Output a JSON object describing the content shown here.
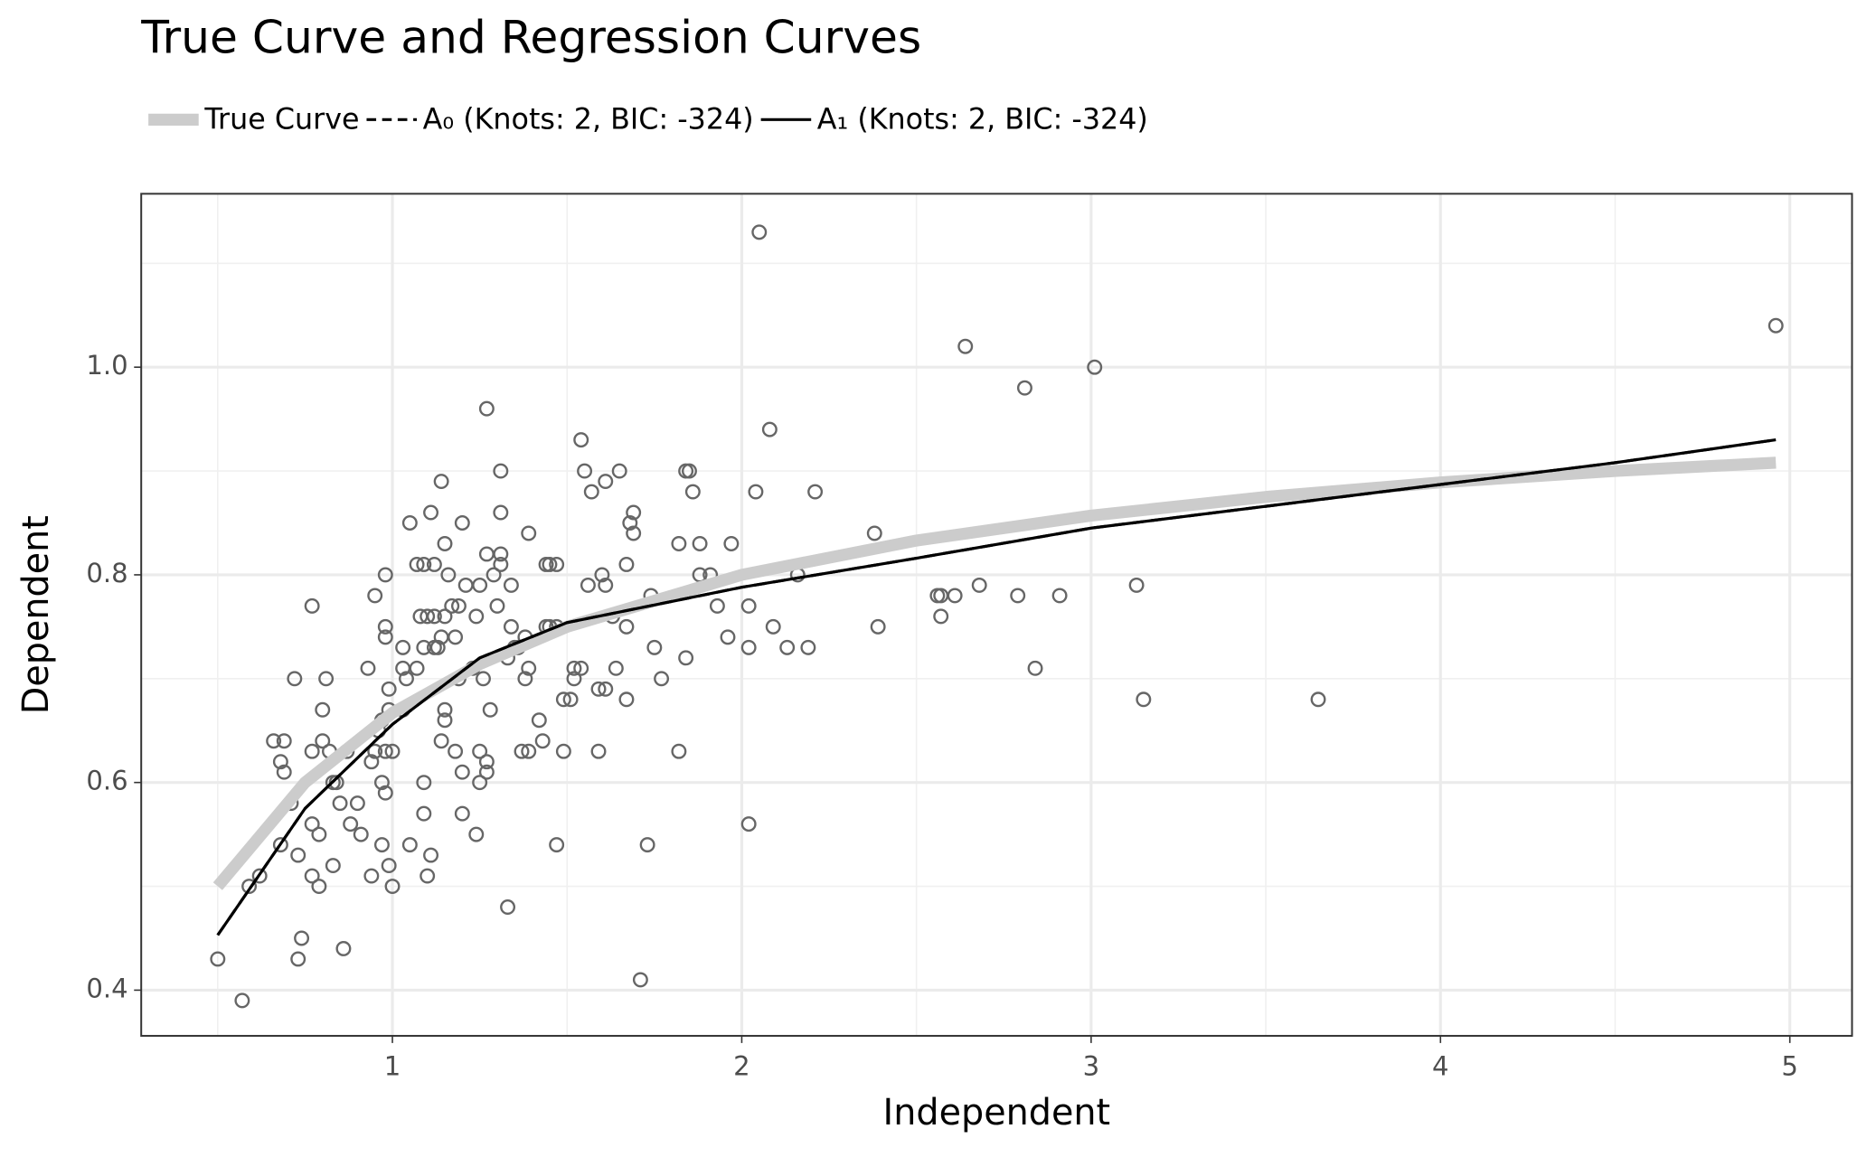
{
  "chart_data": {
    "type": "scatter",
    "title": "True Curve and Regression Curves",
    "x_label": "Independent",
    "y_label": "Dependent",
    "xlim": [
      0.281,
      5.178
    ],
    "ylim": [
      0.356,
      1.167
    ],
    "xticks": [
      1,
      2,
      3,
      4,
      5
    ],
    "yticks": [
      0.4,
      0.6,
      0.8,
      {
        "value": 1,
        "label": "1.0"
      }
    ],
    "grid": true,
    "legend": "top",
    "point_color": "#666666",
    "x": [
      0.5,
      0.57,
      0.59,
      0.62,
      0.66,
      0.68,
      0.68,
      0.69,
      0.69,
      0.71,
      0.72,
      0.73,
      0.73,
      0.74,
      0.77,
      0.77,
      0.77,
      0.77,
      0.79,
      0.79,
      0.8,
      0.8,
      0.81,
      0.82,
      0.83,
      0.83,
      0.84,
      0.85,
      0.86,
      0.87,
      0.88,
      0.9,
      0.91,
      0.93,
      0.94,
      0.94,
      0.95,
      0.95,
      0.96,
      0.97,
      0.97,
      0.97,
      0.98,
      0.98,
      0.98,
      0.98,
      0.98,
      0.99,
      0.99,
      0.99,
      1.0,
      1.0,
      1.03,
      1.03,
      1.03,
      1.04,
      1.05,
      1.05,
      1.07,
      1.07,
      1.08,
      1.09,
      1.09,
      1.09,
      1.09,
      1.1,
      1.1,
      1.11,
      1.11,
      1.12,
      1.12,
      1.12,
      1.13,
      1.14,
      1.14,
      1.14,
      1.15,
      1.15,
      1.15,
      1.15,
      1.16,
      1.17,
      1.18,
      1.18,
      1.19,
      1.19,
      1.2,
      1.2,
      1.2,
      1.21,
      1.23,
      1.24,
      1.24,
      1.25,
      1.25,
      1.25,
      1.26,
      1.27,
      1.27,
      1.27,
      1.27,
      1.28,
      1.29,
      1.3,
      1.31,
      1.31,
      1.31,
      1.31,
      1.33,
      1.33,
      1.34,
      1.34,
      1.35,
      1.36,
      1.37,
      1.38,
      1.38,
      1.39,
      1.39,
      1.39,
      1.42,
      1.43,
      1.44,
      1.44,
      1.45,
      1.45,
      1.47,
      1.47,
      1.47,
      1.49,
      1.49,
      1.51,
      1.52,
      1.52,
      1.54,
      1.54,
      1.55,
      1.56,
      1.57,
      1.59,
      1.59,
      1.6,
      1.61,
      1.61,
      1.61,
      1.63,
      1.64,
      1.65,
      1.67,
      1.67,
      1.67,
      1.68,
      1.69,
      1.69,
      1.71,
      1.73,
      1.74,
      1.75,
      1.77,
      1.82,
      1.82,
      1.84,
      1.84,
      1.85,
      1.86,
      1.88,
      1.88,
      1.91,
      1.93,
      1.96,
      1.97,
      2.02,
      2.02,
      2.02,
      2.04,
      2.05,
      2.08,
      2.09,
      2.13,
      2.16,
      2.19,
      2.21,
      2.38,
      2.39,
      2.56,
      2.57,
      2.57,
      2.61,
      2.64,
      2.68,
      2.79,
      2.81,
      2.84,
      2.91,
      3.01,
      3.13,
      3.15,
      3.65,
      4.96
    ],
    "values": [
      0.43,
      0.39,
      0.5,
      0.51,
      0.64,
      0.62,
      0.54,
      0.64,
      0.61,
      0.58,
      0.7,
      0.53,
      0.43,
      0.45,
      0.77,
      0.63,
      0.56,
      0.51,
      0.55,
      0.5,
      0.67,
      0.64,
      0.7,
      0.63,
      0.6,
      0.52,
      0.6,
      0.58,
      0.44,
      0.63,
      0.56,
      0.58,
      0.55,
      0.71,
      0.51,
      0.62,
      0.78,
      0.63,
      0.65,
      0.66,
      0.6,
      0.54,
      0.75,
      0.74,
      0.8,
      0.63,
      0.59,
      0.69,
      0.67,
      0.52,
      0.5,
      0.63,
      0.67,
      0.73,
      0.71,
      0.7,
      0.85,
      0.54,
      0.81,
      0.71,
      0.76,
      0.73,
      0.6,
      0.57,
      0.81,
      0.51,
      0.76,
      0.86,
      0.53,
      0.81,
      0.76,
      0.73,
      0.73,
      0.89,
      0.64,
      0.74,
      0.83,
      0.76,
      0.67,
      0.66,
      0.8,
      0.77,
      0.74,
      0.63,
      0.77,
      0.7,
      0.85,
      0.61,
      0.57,
      0.79,
      0.71,
      0.76,
      0.55,
      0.79,
      0.63,
      0.6,
      0.7,
      0.96,
      0.82,
      0.62,
      0.61,
      0.67,
      0.8,
      0.77,
      0.9,
      0.86,
      0.82,
      0.81,
      0.72,
      0.48,
      0.79,
      0.75,
      0.73,
      0.73,
      0.63,
      0.74,
      0.7,
      0.84,
      0.71,
      0.63,
      0.66,
      0.64,
      0.81,
      0.75,
      0.81,
      0.75,
      0.81,
      0.75,
      0.54,
      0.68,
      0.63,
      0.68,
      0.71,
      0.7,
      0.93,
      0.71,
      0.9,
      0.79,
      0.88,
      0.69,
      0.63,
      0.8,
      0.89,
      0.79,
      0.69,
      0.76,
      0.71,
      0.9,
      0.81,
      0.75,
      0.68,
      0.85,
      0.86,
      0.84,
      0.41,
      0.54,
      0.78,
      0.73,
      0.7,
      0.83,
      0.63,
      0.9,
      0.72,
      0.9,
      0.88,
      0.83,
      0.8,
      0.8,
      0.77,
      0.74,
      0.83,
      0.77,
      0.73,
      0.56,
      0.88,
      1.13,
      0.94,
      0.75,
      0.73,
      0.8,
      0.73,
      0.88,
      0.84,
      0.75,
      0.78,
      0.78,
      0.76,
      0.78,
      1.02,
      0.79,
      0.78,
      0.98,
      0.71,
      0.78,
      1.0,
      0.79,
      0.68,
      0.68,
      1.04
    ],
    "series": [
      {
        "name": "True Curve",
        "color": "#cccccc",
        "dash": "solid",
        "width": 10,
        "x": [
          0.5,
          0.75,
          1,
          1.25,
          1.5,
          2,
          2.5,
          3,
          3.5,
          4,
          4.5,
          4.96
        ],
        "values": [
          0.5,
          0.6,
          0.667,
          0.714,
          0.75,
          0.8,
          0.833,
          0.857,
          0.875,
          0.889,
          0.9,
          0.908
        ]
      },
      {
        "name": "A₀ (Knots: 2, BIC: -324)",
        "color": "#000000",
        "dash": "dashed",
        "width": 2.4,
        "x": [
          0.5,
          0.75,
          1,
          1.25,
          1.5,
          2,
          2.5,
          3,
          3.5,
          4,
          4.5,
          4.96
        ],
        "values": [
          0.453,
          0.575,
          0.656,
          0.72,
          0.754,
          0.788,
          0.816,
          0.845,
          0.866,
          0.887,
          0.908,
          0.93
        ]
      },
      {
        "name": "A₁ (Knots: 2, BIC: -324)",
        "color": "#000000",
        "dash": "solid",
        "width": 2.4,
        "x": [
          0.5,
          0.75,
          1,
          1.25,
          1.5,
          2,
          2.5,
          3,
          3.5,
          4,
          4.5,
          4.96
        ],
        "values": [
          0.453,
          0.575,
          0.656,
          0.72,
          0.754,
          0.788,
          0.816,
          0.845,
          0.866,
          0.887,
          0.908,
          0.93
        ]
      }
    ]
  }
}
